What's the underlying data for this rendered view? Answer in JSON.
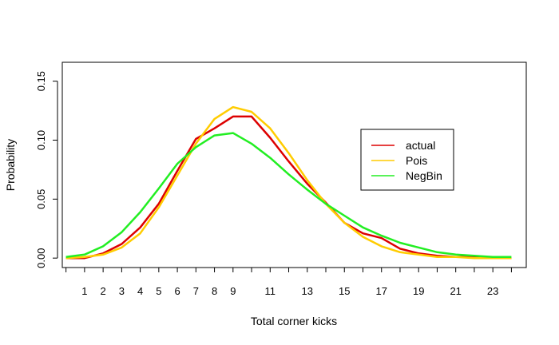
{
  "chart_data": {
    "type": "line",
    "title": "",
    "xlabel": "Total corner kicks",
    "ylabel": "Probability",
    "xlim": [
      -0.2,
      24.8
    ],
    "ylim": [
      -0.008,
      0.166
    ],
    "x_ticks": [
      1,
      2,
      3,
      4,
      5,
      6,
      7,
      8,
      9,
      11,
      13,
      15,
      17,
      19,
      21,
      23
    ],
    "x_tick_marks": [
      0,
      1,
      2,
      3,
      4,
      5,
      6,
      7,
      8,
      9,
      10,
      11,
      12,
      13,
      14,
      15,
      16,
      17,
      18,
      19,
      20,
      21,
      22,
      23,
      24
    ],
    "y_ticks": [
      "0.00",
      "0.05",
      "0.10",
      "0.15"
    ],
    "y_tick_values": [
      0,
      0.05,
      0.1,
      0.15
    ],
    "grid": false,
    "legend_position": "right",
    "x": [
      0,
      1,
      2,
      3,
      4,
      5,
      6,
      7,
      8,
      9,
      10,
      11,
      12,
      13,
      14,
      15,
      16,
      17,
      18,
      19,
      20,
      21,
      22,
      23,
      24
    ],
    "series": [
      {
        "name": "actual",
        "color": "#dd0000",
        "values": [
          0.0,
          0.0,
          0.004,
          0.012,
          0.026,
          0.046,
          0.074,
          0.101,
          0.11,
          0.12,
          0.12,
          0.102,
          0.082,
          0.063,
          0.047,
          0.03,
          0.021,
          0.017,
          0.008,
          0.004,
          0.002,
          0.001,
          0.001,
          0.0,
          0.0
        ]
      },
      {
        "name": "Pois",
        "color": "#ffcc00",
        "values": [
          0.0,
          0.001,
          0.003,
          0.009,
          0.021,
          0.043,
          0.07,
          0.097,
          0.118,
          0.128,
          0.124,
          0.11,
          0.089,
          0.066,
          0.046,
          0.03,
          0.018,
          0.01,
          0.005,
          0.003,
          0.001,
          0.001,
          0.0,
          0.0,
          0.0
        ]
      },
      {
        "name": "NegBin",
        "color": "#22ee22",
        "values": [
          0.001,
          0.003,
          0.01,
          0.022,
          0.039,
          0.059,
          0.08,
          0.094,
          0.104,
          0.106,
          0.097,
          0.085,
          0.071,
          0.058,
          0.046,
          0.036,
          0.026,
          0.019,
          0.013,
          0.009,
          0.005,
          0.003,
          0.002,
          0.001,
          0.001
        ]
      }
    ]
  }
}
